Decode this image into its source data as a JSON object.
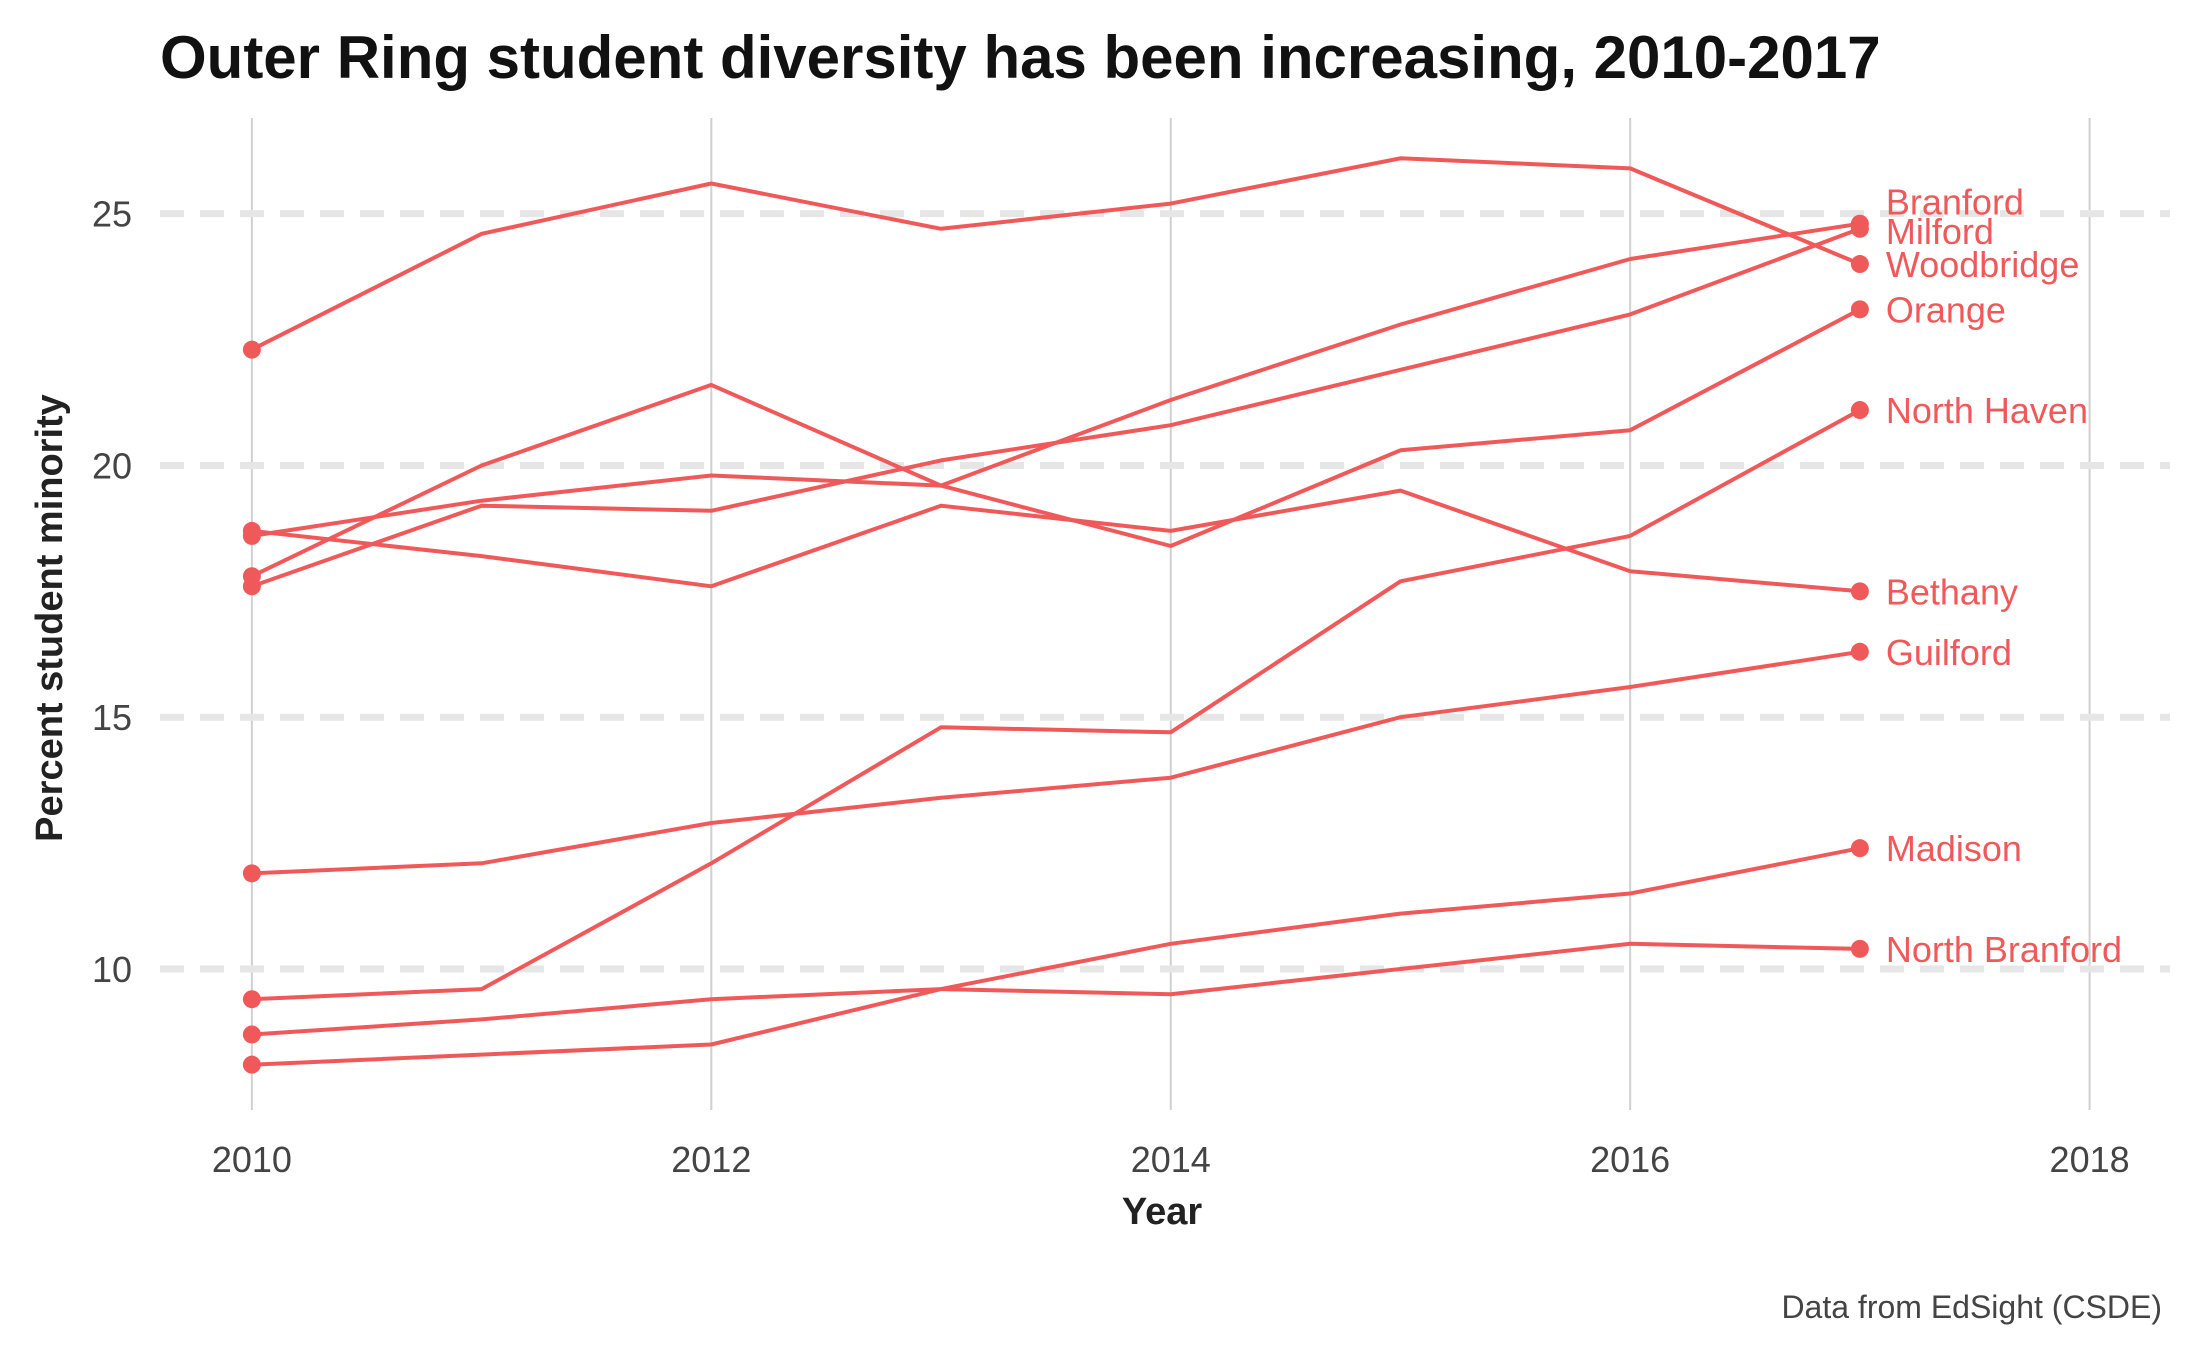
{
  "chart_data": {
    "type": "line",
    "title": "Outer Ring student diversity has been increasing, 2010-2017",
    "xlabel": "Year",
    "ylabel": "Percent student minority",
    "caption": "Data from EdSight (CSDE)",
    "x": [
      2010,
      2011,
      2012,
      2013,
      2014,
      2015,
      2016,
      2017
    ],
    "xlim": [
      2009.6,
      2018.35
    ],
    "ylim": [
      7.2,
      26.9
    ],
    "xticks": [
      2010,
      2012,
      2014,
      2016,
      2018
    ],
    "yticks": [
      10,
      15,
      20,
      25
    ],
    "grid": {
      "x": "solid",
      "y": "dashed"
    },
    "color": "#F0595A",
    "series": [
      {
        "name": "Branford",
        "values": [
          17.8,
          20.0,
          21.6,
          19.6,
          21.3,
          22.8,
          24.1,
          24.8
        ]
      },
      {
        "name": "Milford",
        "values": [
          17.6,
          19.2,
          19.1,
          20.1,
          20.8,
          21.9,
          23.0,
          24.7
        ]
      },
      {
        "name": "Woodbridge",
        "values": [
          22.3,
          24.6,
          25.6,
          24.7,
          25.2,
          26.1,
          25.9,
          24.0
        ]
      },
      {
        "name": "Orange",
        "values": [
          18.6,
          19.3,
          19.8,
          19.6,
          18.4,
          20.3,
          20.7,
          23.1
        ]
      },
      {
        "name": "North Haven",
        "values": [
          9.4,
          9.6,
          12.1,
          14.8,
          14.7,
          17.7,
          18.6,
          21.1
        ]
      },
      {
        "name": "Bethany",
        "values": [
          18.7,
          18.2,
          17.6,
          19.2,
          18.7,
          19.5,
          17.9,
          17.5
        ]
      },
      {
        "name": "Guilford",
        "values": [
          11.9,
          12.1,
          12.9,
          13.4,
          13.8,
          15.0,
          15.6,
          16.3
        ]
      },
      {
        "name": "Madison",
        "values": [
          8.7,
          9.0,
          9.4,
          9.6,
          10.5,
          11.1,
          11.5,
          12.4
        ]
      },
      {
        "name": "North Branford",
        "values": [
          8.1,
          8.3,
          8.5,
          9.6,
          9.5,
          10.0,
          10.5,
          10.4
        ]
      }
    ]
  }
}
